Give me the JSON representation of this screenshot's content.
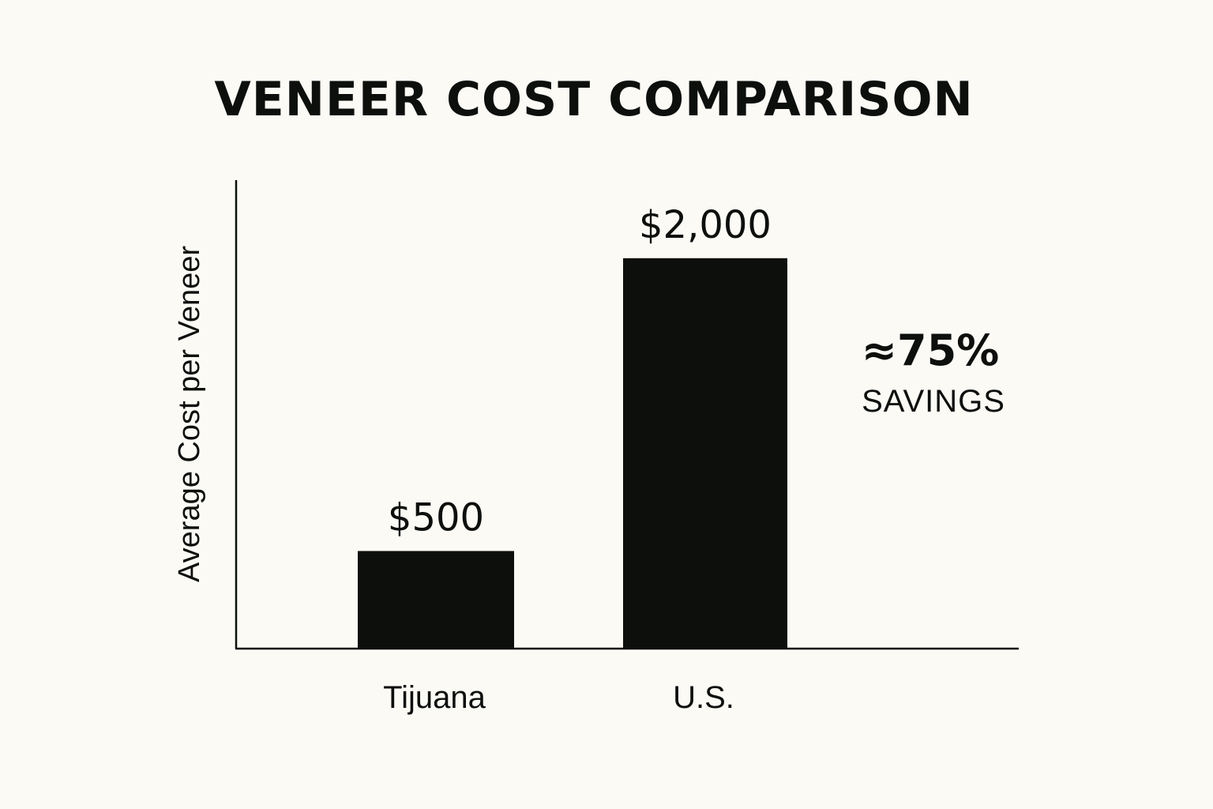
{
  "chart_data": {
    "type": "bar",
    "title": "VENEER COST COMPARISON",
    "xlabel": "",
    "ylabel": "Average Cost per Veneer",
    "categories": [
      "Tijuana",
      "U.S."
    ],
    "values": [
      500,
      2000
    ],
    "value_labels": [
      "$500",
      "$2,000"
    ],
    "ylim": [
      0,
      2400
    ],
    "grid": false,
    "legend": "none",
    "bar_color": "#0d0f0d",
    "background_color": "#fbfaf5",
    "annotation": {
      "main": "≈75%",
      "sub": "SAVINGS"
    }
  }
}
